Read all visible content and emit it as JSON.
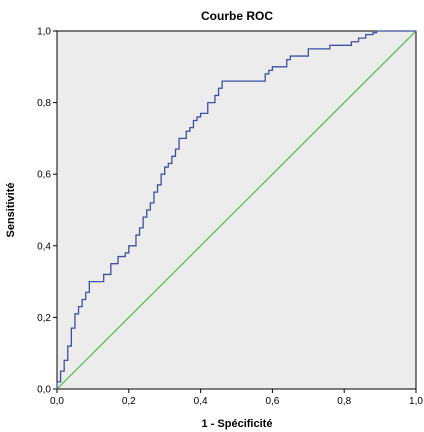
{
  "chart_data": {
    "type": "line",
    "title": "Courbe ROC",
    "xlabel": "1 - Spécificité",
    "ylabel": "Sensitivité",
    "xlim": [
      0,
      1
    ],
    "ylim": [
      0,
      1
    ],
    "x_ticks": [
      "0,0",
      "0,2",
      "0,4",
      "0,6",
      "0,8",
      "1,0"
    ],
    "y_ticks": [
      "0,0",
      "0,2",
      "0,4",
      "0,6",
      "0,8",
      "1,0"
    ],
    "grid": false,
    "legend": "none",
    "series": [
      {
        "color": "#3f4fa3",
        "x": [
          0.0,
          0.0,
          0.01,
          0.01,
          0.02,
          0.02,
          0.03,
          0.03,
          0.04,
          0.04,
          0.05,
          0.05,
          0.06,
          0.06,
          0.07,
          0.07,
          0.08,
          0.08,
          0.09,
          0.09,
          0.13,
          0.13,
          0.15,
          0.15,
          0.17,
          0.17,
          0.19,
          0.19,
          0.2,
          0.2,
          0.22,
          0.22,
          0.23,
          0.23,
          0.24,
          0.24,
          0.25,
          0.25,
          0.26,
          0.26,
          0.27,
          0.27,
          0.28,
          0.28,
          0.29,
          0.29,
          0.3,
          0.3,
          0.31,
          0.31,
          0.32,
          0.32,
          0.33,
          0.33,
          0.34,
          0.34,
          0.36,
          0.36,
          0.37,
          0.37,
          0.38,
          0.38,
          0.39,
          0.39,
          0.4,
          0.4,
          0.42,
          0.42,
          0.44,
          0.44,
          0.45,
          0.45,
          0.46,
          0.46,
          0.58,
          0.58,
          0.59,
          0.59,
          0.6,
          0.6,
          0.64,
          0.64,
          0.65,
          0.65,
          0.7,
          0.7,
          0.76,
          0.76,
          0.82,
          0.82,
          0.84,
          0.84,
          0.86,
          0.86,
          0.88,
          0.88,
          0.89,
          0.89,
          0.9,
          0.9,
          0.91,
          0.91,
          0.92,
          0.92,
          0.93,
          1.0
        ],
        "y": [
          0.0,
          0.02,
          0.02,
          0.05,
          0.05,
          0.08,
          0.08,
          0.12,
          0.12,
          0.17,
          0.17,
          0.21,
          0.21,
          0.23,
          0.23,
          0.25,
          0.25,
          0.27,
          0.27,
          0.3,
          0.3,
          0.32,
          0.32,
          0.35,
          0.35,
          0.37,
          0.37,
          0.38,
          0.38,
          0.4,
          0.4,
          0.43,
          0.43,
          0.45,
          0.45,
          0.48,
          0.48,
          0.5,
          0.5,
          0.52,
          0.52,
          0.55,
          0.55,
          0.57,
          0.57,
          0.6,
          0.6,
          0.62,
          0.62,
          0.63,
          0.63,
          0.65,
          0.65,
          0.67,
          0.67,
          0.7,
          0.7,
          0.72,
          0.72,
          0.73,
          0.73,
          0.75,
          0.75,
          0.76,
          0.76,
          0.77,
          0.77,
          0.8,
          0.8,
          0.82,
          0.82,
          0.84,
          0.84,
          0.86,
          0.86,
          0.88,
          0.88,
          0.89,
          0.89,
          0.9,
          0.9,
          0.92,
          0.92,
          0.93,
          0.93,
          0.95,
          0.95,
          0.96,
          0.96,
          0.97,
          0.97,
          0.98,
          0.98,
          0.99,
          0.99,
          0.995,
          0.995,
          1.0,
          1.0,
          1.0,
          1.0,
          1.0,
          1.0,
          1.0,
          1.0,
          1.0
        ]
      },
      {
        "color": "#5cbd5c",
        "x": [
          0,
          1
        ],
        "y": [
          0,
          1
        ]
      }
    ]
  }
}
